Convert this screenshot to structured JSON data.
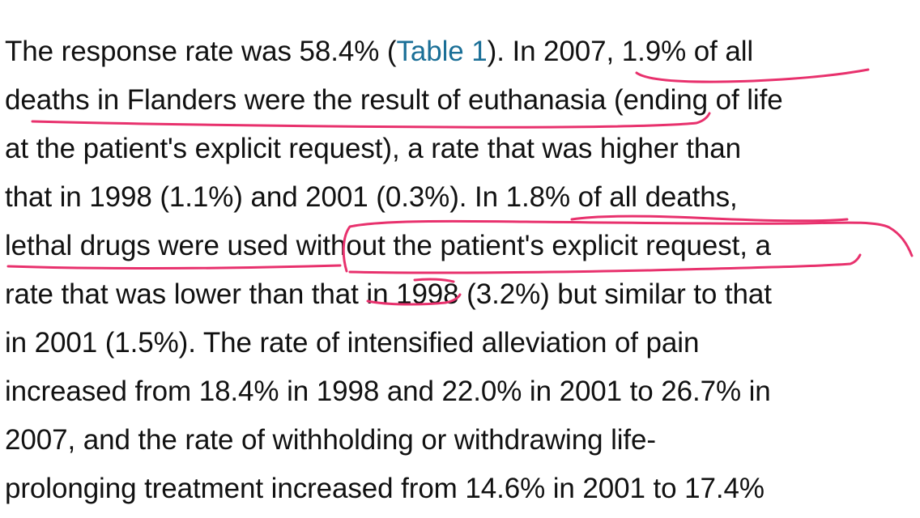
{
  "document": {
    "paragraph": {
      "line_1": {
        "before_link": "The response rate was 58.4% (",
        "link_text": "Table 1",
        "after_link": "). In 2007, 1.9% of all"
      },
      "line_2": "deaths in Flanders were the result of euthanasia (ending of life",
      "line_3": "at the patient's explicit request), a rate that was higher than",
      "line_4": "that in 1998 (1.1%) and 2001 (0.3%). In 1.8% of all deaths,",
      "line_5": "lethal drugs were used without the patient's explicit request, a",
      "line_6": "rate that was lower than that in 1998 (3.2%) but similar to that",
      "line_7": "in 2001 (1.5%). The rate of intensified alleviation of pain",
      "line_8": "increased from 18.4% in 1998 and 22.0% in 2001 to 26.7% in",
      "line_9": "2007, and the rate of withholding or withdrawing life-",
      "line_10": "prolonging treatment increased from 14.6% in 2001 to 17.4%"
    }
  },
  "colors": {
    "text": "#111111",
    "link": "#1a6f97",
    "annotation_ink": "#e8316d",
    "background": "#ffffff"
  }
}
